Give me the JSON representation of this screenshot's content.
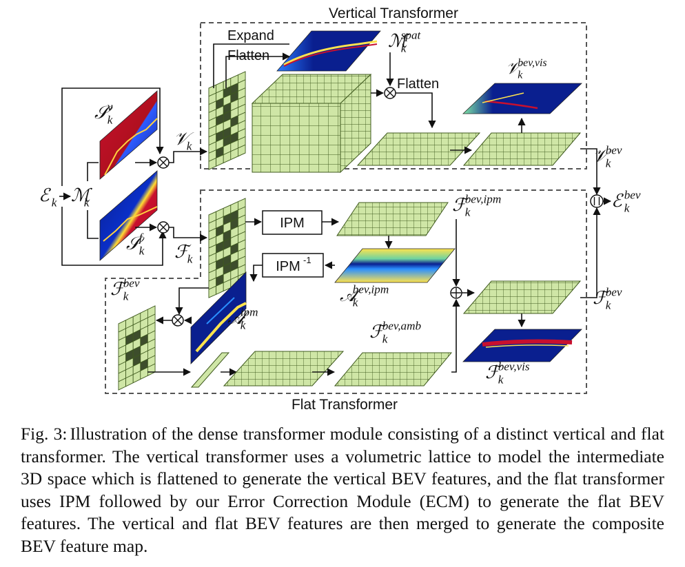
{
  "figure": {
    "vertical_title": "Vertical Transformer",
    "flat_title": "Flat Transformer",
    "expand_label": "Expand",
    "flatten_top_label": "Flatten",
    "flatten_mid_label": "Flatten",
    "ipm_label": "IPM",
    "ipm_inv_label": "IPM",
    "ipm_inv_sup": "-1",
    "symbols": {
      "E_k": {
        "base": "ℰ",
        "sub": "k",
        "sup": ""
      },
      "M_k": {
        "base": "ℳ",
        "sub": "k",
        "sup": ""
      },
      "S_v": {
        "base": "𝒮",
        "sub": "k",
        "sup": "v"
      },
      "S_f": {
        "base": "𝒮",
        "sub": "k",
        "sup": "f"
      },
      "V_k": {
        "base": "𝒱",
        "sub": "k",
        "sup": ""
      },
      "F_k": {
        "base": "ℱ",
        "sub": "k",
        "sup": ""
      },
      "M_spat": {
        "base": "ℳ",
        "sub": "k",
        "sup": "spat"
      },
      "V_bev_vis": {
        "base": "𝒱",
        "sub": "k",
        "sup": "bev,vis"
      },
      "V_bev": {
        "base": "𝒱",
        "sub": "k",
        "sup": "bev"
      },
      "E_bev": {
        "base": "ℰ",
        "sub": "k",
        "sup": "bev"
      },
      "F_bev_ipm": {
        "base": "ℱ",
        "sub": "k",
        "sup": "bev,ipm"
      },
      "A_bev_ipm": {
        "base": "𝒜",
        "sub": "k",
        "sup": "bev,ipm"
      },
      "F_bev_right": {
        "base": "ℱ",
        "sub": "k",
        "sup": "bev"
      },
      "F_bev_left": {
        "base": "ℱ",
        "sub": "k",
        "sup": "bev"
      },
      "A_ipm": {
        "base": "𝒜",
        "sub": "k",
        "sup": "ipm"
      },
      "F_bev_amb": {
        "base": "ℱ",
        "sub": "k",
        "sup": "bev,amb"
      },
      "F_bev_vis": {
        "base": "ℱ",
        "sub": "k",
        "sup": "bev,vis"
      }
    },
    "colors": {
      "grid_fill": "#cfe6a6",
      "grid_stroke": "#3f5a1e",
      "dark_cell": "#3d4d2c",
      "heatmap_blue": "#0a1f8f",
      "heatmap_red": "#c8102e",
      "heatmap_yellow": "#ffe34d"
    }
  },
  "caption": {
    "label": "Fig. 3:",
    "text": "Illustration of the dense transformer module consisting of a distinct vertical and flat transformer. The vertical transformer uses a volumetric lattice to model the intermediate 3D space which is flattened to generate the vertical BEV features, and the flat transformer uses IPM followed by our Error Correction Module (ECM) to generate the flat BEV features. The vertical and flat BEV features are then merged to generate the composite BEV feature map."
  }
}
